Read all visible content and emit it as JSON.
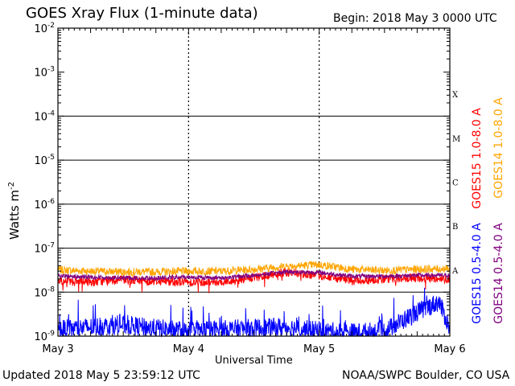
{
  "header": {
    "title": "GOES Xray Flux (1-minute data)",
    "begin": "Begin:  2018 May 3 0000 UTC"
  },
  "footer": {
    "updated": "Updated 2018 May  5 23:59:12 UTC",
    "credit": "NOAA/SWPC Boulder, CO USA"
  },
  "chart_data": {
    "type": "line",
    "title": "GOES Xray Flux (1-minute data)",
    "xlabel": "Universal Time",
    "ylabel": "Watts m",
    "ylabel_sup": "-2",
    "yscale": "log",
    "ylim": [
      1e-09,
      0.01
    ],
    "xlim": [
      "2018-05-03 00:00",
      "2018-05-06 00:00"
    ],
    "x_ticks": [
      "May 3",
      "May 4",
      "May 5",
      "May 6"
    ],
    "y_ticks": [
      {
        "base": "10",
        "exp": "-9",
        "value": 1e-09
      },
      {
        "base": "10",
        "exp": "-8",
        "value": 1e-08
      },
      {
        "base": "10",
        "exp": "-7",
        "value": 1e-07
      },
      {
        "base": "10",
        "exp": "-6",
        "value": 1e-06
      },
      {
        "base": "10",
        "exp": "-5",
        "value": 1e-05
      },
      {
        "base": "10",
        "exp": "-4",
        "value": 0.0001
      },
      {
        "base": "10",
        "exp": "-3",
        "value": 0.001
      },
      {
        "base": "10",
        "exp": "-2",
        "value": 0.01
      }
    ],
    "flare_classes": [
      {
        "label": "A",
        "value": 1e-08
      },
      {
        "label": "B",
        "value": 1e-07
      },
      {
        "label": "C",
        "value": 1e-06
      },
      {
        "label": "M",
        "value": 1e-05
      },
      {
        "label": "X",
        "value": 0.0001
      }
    ],
    "grid": true,
    "series": [
      {
        "name": "GOES14 1.0-8.0 A",
        "color": "#ffa500",
        "x": [
          "2018-05-03 00:00",
          "2018-05-03 06:00",
          "2018-05-03 12:00",
          "2018-05-03 18:00",
          "2018-05-04 00:00",
          "2018-05-04 06:00",
          "2018-05-04 12:00",
          "2018-05-04 18:00",
          "2018-05-05 00:00",
          "2018-05-05 06:00",
          "2018-05-05 12:00",
          "2018-05-05 18:00",
          "2018-05-06 00:00"
        ],
        "values": [
          3.2e-08,
          3e-08,
          2.9e-08,
          2.9e-08,
          3e-08,
          3e-08,
          3.3e-08,
          3.9e-08,
          4.2e-08,
          3.3e-08,
          3.1e-08,
          3.3e-08,
          3.4e-08
        ]
      },
      {
        "name": "GOES15 1.0-8.0 A",
        "color": "#ff0000",
        "x": [
          "2018-05-03 00:00",
          "2018-05-03 06:00",
          "2018-05-03 12:00",
          "2018-05-03 18:00",
          "2018-05-04 00:00",
          "2018-05-04 06:00",
          "2018-05-04 12:00",
          "2018-05-04 18:00",
          "2018-05-05 00:00",
          "2018-05-05 06:00",
          "2018-05-05 12:00",
          "2018-05-05 18:00",
          "2018-05-06 00:00"
        ],
        "values": [
          1.8e-08,
          1.7e-08,
          1.9e-08,
          1.8e-08,
          1.7e-08,
          1.7e-08,
          2.1e-08,
          2.8e-08,
          2.4e-08,
          1.8e-08,
          2e-08,
          2.1e-08,
          2e-08
        ]
      },
      {
        "name": "GOES14 0.5-4.0 A",
        "color": "#800080",
        "x": [
          "2018-05-03 00:00",
          "2018-05-03 06:00",
          "2018-05-03 12:00",
          "2018-05-03 18:00",
          "2018-05-04 00:00",
          "2018-05-04 06:00",
          "2018-05-04 12:00",
          "2018-05-04 18:00",
          "2018-05-05 00:00",
          "2018-05-05 06:00",
          "2018-05-05 12:00",
          "2018-05-05 18:00",
          "2018-05-06 00:00"
        ],
        "values": [
          2.3e-08,
          2.2e-08,
          2.1e-08,
          2.1e-08,
          2.2e-08,
          2.1e-08,
          2.4e-08,
          2.9e-08,
          2.8e-08,
          2.3e-08,
          2.3e-08,
          2.4e-08,
          2.4e-08
        ]
      },
      {
        "name": "GOES15 0.5-4.0 A",
        "color": "#0000ff",
        "x": [
          "2018-05-03 00:00",
          "2018-05-03 06:00",
          "2018-05-03 12:00",
          "2018-05-03 18:00",
          "2018-05-04 00:00",
          "2018-05-04 06:00",
          "2018-05-04 12:00",
          "2018-05-04 18:00",
          "2018-05-05 00:00",
          "2018-05-05 06:00",
          "2018-05-05 12:00",
          "2018-05-05 18:00",
          "2018-05-05 22:00",
          "2018-05-06 00:00"
        ],
        "values": [
          1.4e-09,
          1.6e-09,
          1.8e-09,
          1.5e-09,
          1.3e-09,
          1.4e-09,
          1.5e-09,
          1.6e-09,
          1.3e-09,
          1.2e-09,
          1.3e-09,
          3.5e-09,
          6e-09,
          1.5e-09
        ]
      }
    ],
    "legend_placement": "right, vertical"
  }
}
